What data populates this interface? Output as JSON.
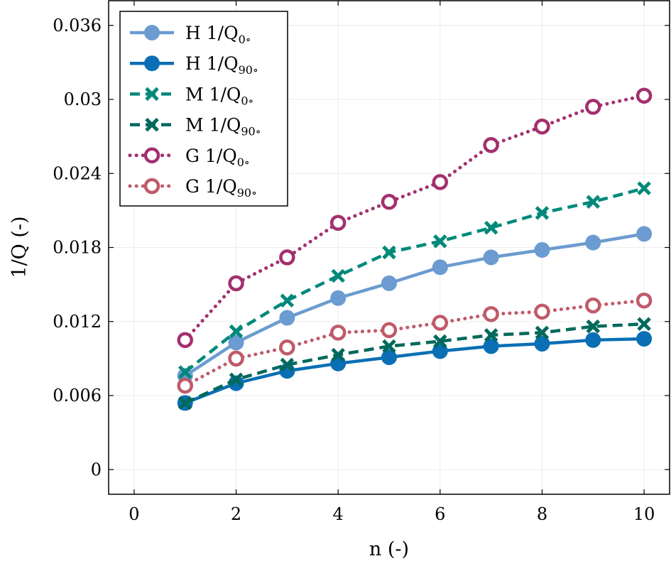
{
  "chart_data": {
    "type": "line",
    "title": "",
    "xlabel": "n (-)",
    "ylabel": "1/Q (-)",
    "xlim": [
      -0.5,
      10.5
    ],
    "ylim": [
      -0.002,
      0.038
    ],
    "xticks": [
      0,
      2,
      4,
      6,
      8,
      10
    ],
    "xtick_labels": [
      "0",
      "2",
      "4",
      "6",
      "8",
      "10"
    ],
    "yticks": [
      0,
      0.006,
      0.012,
      0.018,
      0.024,
      0.03,
      0.036
    ],
    "ytick_labels": [
      "0",
      "0.006",
      "0.012",
      "0.018",
      "0.024",
      "0.03",
      "0.036"
    ],
    "grid": true,
    "legend_position": "top-left",
    "x": [
      1,
      2,
      3,
      4,
      5,
      6,
      7,
      8,
      9,
      10
    ],
    "series": [
      {
        "name": "H 1/Q0°",
        "label_main": "H 1/Q",
        "label_sub": "0∘",
        "color": "#6b9bd0",
        "dash": "solid",
        "marker": "filled-circle",
        "values": [
          0.0076,
          0.0103,
          0.0123,
          0.0139,
          0.0151,
          0.0164,
          0.0172,
          0.0178,
          0.0184,
          0.0191
        ]
      },
      {
        "name": "H 1/Q90°",
        "label_main": "H 1/Q",
        "label_sub": "90∘",
        "color": "#0a6fb5",
        "dash": "solid",
        "marker": "filled-circle",
        "values": [
          0.0054,
          0.007,
          0.008,
          0.0086,
          0.0091,
          0.0096,
          0.01,
          0.0102,
          0.0105,
          0.0106
        ]
      },
      {
        "name": "M 1/Q0°",
        "label_main": "M 1/Q",
        "label_sub": "0∘",
        "color": "#00897b",
        "dash": "dashed",
        "marker": "x",
        "values": [
          0.0079,
          0.0112,
          0.0137,
          0.0157,
          0.0176,
          0.0185,
          0.0196,
          0.0208,
          0.0217,
          0.0228
        ]
      },
      {
        "name": "M 1/Q90°",
        "label_main": "M 1/Q",
        "label_sub": "90∘",
        "color": "#00695c",
        "dash": "dashed",
        "marker": "x",
        "values": [
          0.0054,
          0.0073,
          0.0085,
          0.0093,
          0.01,
          0.0104,
          0.0109,
          0.0111,
          0.0116,
          0.0118
        ]
      },
      {
        "name": "G 1/Q0°",
        "label_main": "G 1/Q",
        "label_sub": "0∘",
        "color": "#a3306e",
        "dash": "dotted",
        "marker": "open-circle",
        "values": [
          0.0105,
          0.0151,
          0.0172,
          0.02,
          0.0217,
          0.0233,
          0.0263,
          0.0278,
          0.0294,
          0.0303
        ]
      },
      {
        "name": "G 1/Q90°",
        "label_main": "G 1/Q",
        "label_sub": "90∘",
        "color": "#c05a6a",
        "dash": "dotted",
        "marker": "open-circle",
        "values": [
          0.0068,
          0.009,
          0.0099,
          0.0111,
          0.0113,
          0.0119,
          0.0126,
          0.0128,
          0.0133,
          0.0137
        ]
      }
    ]
  }
}
